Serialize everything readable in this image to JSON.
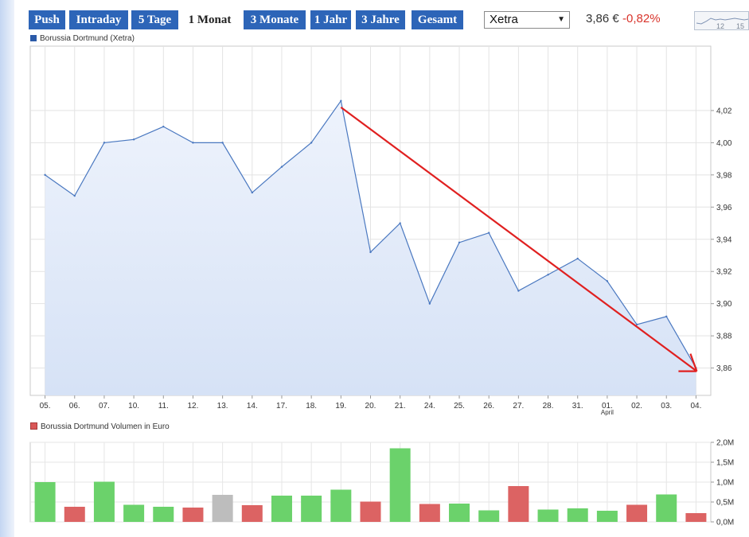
{
  "tabs": [
    {
      "label": "Push",
      "active": false
    },
    {
      "label": "Intraday",
      "active": false
    },
    {
      "label": "5 Tage",
      "active": false
    },
    {
      "label": "1 Monat",
      "active": true
    },
    {
      "label": "3 Monate",
      "active": false
    },
    {
      "label": "1 Jahr",
      "active": false
    },
    {
      "label": "3 Jahre",
      "active": false
    },
    {
      "label": "Gesamt",
      "active": false
    }
  ],
  "exchange": {
    "selected": "Xetra"
  },
  "quote": {
    "price": "3,86 €",
    "change": "-0,82%"
  },
  "mini_chart": {
    "labels": [
      "12",
      "15"
    ]
  },
  "colors": {
    "tab_bg": "#2d65b8",
    "price_line": "#4a78c0",
    "area_fill": "#dbe6f7",
    "volume_up": "#6bd26b",
    "volume_down": "#dc6363",
    "volume_neutral": "#bdbdbd",
    "trend_arrow": "#e02020",
    "change": "#d9342b"
  },
  "chart_data": [
    {
      "type": "area",
      "legend": "Borussia Dortmund (Xetra)",
      "x": [
        "05.",
        "06.",
        "07.",
        "10.",
        "11.",
        "12.",
        "13.",
        "14.",
        "17.",
        "18.",
        "19.",
        "20.",
        "21.",
        "24.",
        "25.",
        "26.",
        "27.",
        "28.",
        "31.",
        "01.",
        "02.",
        "03.",
        "04."
      ],
      "x_sublabel": {
        "01.": "April"
      },
      "series": [
        {
          "values": [
            3.98,
            3.967,
            4.0,
            4.002,
            4.01,
            4.0,
            4.0,
            3.969,
            3.985,
            4.0,
            4.026,
            3.932,
            3.95,
            3.9,
            3.938,
            3.944,
            3.908,
            3.918,
            3.928,
            3.914,
            3.887,
            3.892,
            3.86
          ]
        }
      ],
      "y_ticks": [
        "4,02",
        "4,00",
        "3,98",
        "3,96",
        "3,94",
        "3,92",
        "3,90",
        "3,88",
        "3,86"
      ],
      "y_tick_values": [
        4.02,
        4.0,
        3.98,
        3.96,
        3.94,
        3.92,
        3.9,
        3.88,
        3.86
      ],
      "ylim": [
        3.843,
        4.06
      ],
      "grid": true,
      "annotations": [
        {
          "type": "arrow",
          "from": {
            "x": "19.",
            "y": 4.022
          },
          "to": {
            "x": "04.",
            "y": 3.858
          }
        }
      ]
    },
    {
      "type": "bar",
      "legend": "Borussia Dortmund Volumen in Euro",
      "categories": [
        "05.",
        "06.",
        "07.",
        "10.",
        "11.",
        "12.",
        "13.",
        "14.",
        "17.",
        "18.",
        "19.",
        "20.",
        "21.",
        "24.",
        "25.",
        "26.",
        "27.",
        "28.",
        "31.",
        "01.",
        "02.",
        "03.",
        "04."
      ],
      "values": [
        1.0,
        0.38,
        1.01,
        0.43,
        0.38,
        0.36,
        0.68,
        0.42,
        0.66,
        0.66,
        0.81,
        0.51,
        1.85,
        0.45,
        0.46,
        0.29,
        0.9,
        0.31,
        0.34,
        0.28,
        0.43,
        0.69,
        0.22
      ],
      "directions": [
        "up",
        "down",
        "up",
        "up",
        "up",
        "down",
        "neutral",
        "down",
        "up",
        "up",
        "up",
        "down",
        "up",
        "down",
        "up",
        "up",
        "down",
        "up",
        "up",
        "up",
        "down",
        "up",
        "down"
      ],
      "y_ticks": [
        "2,0M",
        "1,5M",
        "1,0M",
        "0,5M",
        "0,0M"
      ],
      "y_tick_values": [
        2.0,
        1.5,
        1.0,
        0.5,
        0.0
      ],
      "ylim": [
        0,
        2.0
      ],
      "grid": true
    }
  ]
}
